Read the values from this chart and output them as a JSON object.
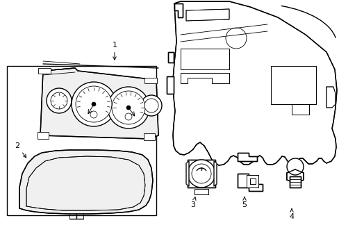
{
  "background_color": "#ffffff",
  "line_color": "#000000",
  "lw": 1.0,
  "tlw": 0.6,
  "fig_width": 4.89,
  "fig_height": 3.6,
  "dpi": 100,
  "label_fontsize": 8
}
